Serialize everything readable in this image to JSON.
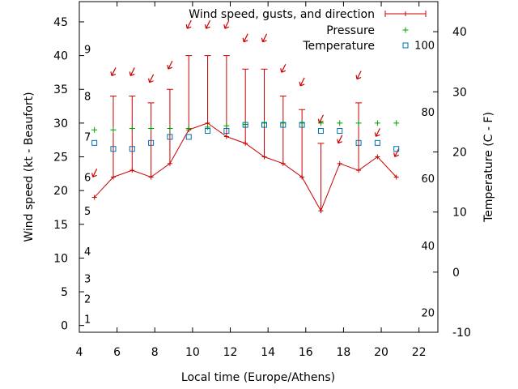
{
  "chart_data": {
    "type": "line",
    "xlabel": "Local time (Europe/Athens)",
    "ylabel_left": "Wind speed (kt - Beaufort)",
    "ylabel_right": "Temperature (C - F)",
    "xlim": [
      4,
      23
    ],
    "x_ticks": [
      4,
      6,
      8,
      10,
      12,
      14,
      16,
      18,
      20,
      22
    ],
    "ylim_left": [
      -1,
      48
    ],
    "y_ticks_left": [
      0,
      5,
      10,
      15,
      20,
      25,
      30,
      35,
      40,
      45
    ],
    "ylim_right": [
      -10,
      45
    ],
    "y_ticks_right": [
      -10,
      0,
      10,
      20,
      30,
      40
    ],
    "beaufort_scale": [
      {
        "label": "1",
        "kt": 1
      },
      {
        "label": "2",
        "kt": 4
      },
      {
        "label": "3",
        "kt": 7
      },
      {
        "label": "4",
        "kt": 11
      },
      {
        "label": "5",
        "kt": 17
      },
      {
        "label": "6",
        "kt": 22
      },
      {
        "label": "7",
        "kt": 28
      },
      {
        "label": "8",
        "kt": 34
      },
      {
        "label": "9",
        "kt": 41
      }
    ],
    "fahrenheit_scale": [
      {
        "label": "20",
        "celsius": -6.7
      },
      {
        "label": "40",
        "celsius": 4.4
      },
      {
        "label": "60",
        "celsius": 15.6
      },
      {
        "label": "80",
        "celsius": 26.7
      },
      {
        "label": "100",
        "celsius": 37.8
      }
    ],
    "series": [
      {
        "name": "Wind speed, gusts, and direction",
        "color": "#cc0000",
        "x": [
          4.8,
          5.8,
          6.8,
          7.8,
          8.8,
          9.8,
          10.8,
          11.8,
          12.8,
          13.8,
          14.8,
          15.8,
          16.8,
          17.8,
          18.8,
          19.8,
          20.8
        ],
        "speed": [
          19,
          22,
          23,
          22,
          24,
          29,
          30,
          28,
          27,
          25,
          24,
          22,
          17,
          24,
          23,
          25,
          22
        ],
        "gust": [
          null,
          34,
          34,
          33,
          35,
          40,
          40,
          40,
          38,
          38,
          34,
          32,
          27,
          null,
          33,
          null,
          null
        ],
        "direction_arrow_kt": [
          22.5,
          37.5,
          37.5,
          36.5,
          38.5,
          44.5,
          44.5,
          44.5,
          42.5,
          42.5,
          38,
          36,
          30.5,
          27.5,
          37,
          28.5,
          25.5
        ]
      },
      {
        "name": "Pressure",
        "color": "#00a000",
        "x": [
          4.8,
          5.8,
          6.8,
          7.8,
          8.8,
          9.8,
          10.8,
          11.8,
          12.8,
          13.8,
          14.8,
          15.8,
          16.8,
          17.8,
          18.8,
          19.8,
          20.8
        ],
        "y_kt": [
          29.0,
          29.0,
          29.2,
          29.2,
          29.2,
          29.2,
          29.4,
          29.6,
          29.8,
          30.0,
          30.0,
          30.0,
          30.0,
          30.0,
          30.0,
          30.0,
          30.0
        ]
      },
      {
        "name": "Temperature",
        "color": "#0070b0",
        "x": [
          4.8,
          5.8,
          6.8,
          7.8,
          8.8,
          9.8,
          10.8,
          11.8,
          12.8,
          13.8,
          14.8,
          15.8,
          16.8,
          17.8,
          18.8,
          19.8,
          20.8
        ],
        "y_celsius": [
          21.5,
          20.5,
          20.5,
          21.5,
          22.5,
          22.5,
          23.5,
          23.5,
          24.5,
          24.5,
          24.5,
          24.5,
          23.5,
          23.5,
          21.5,
          21.5,
          20.5
        ]
      }
    ]
  }
}
